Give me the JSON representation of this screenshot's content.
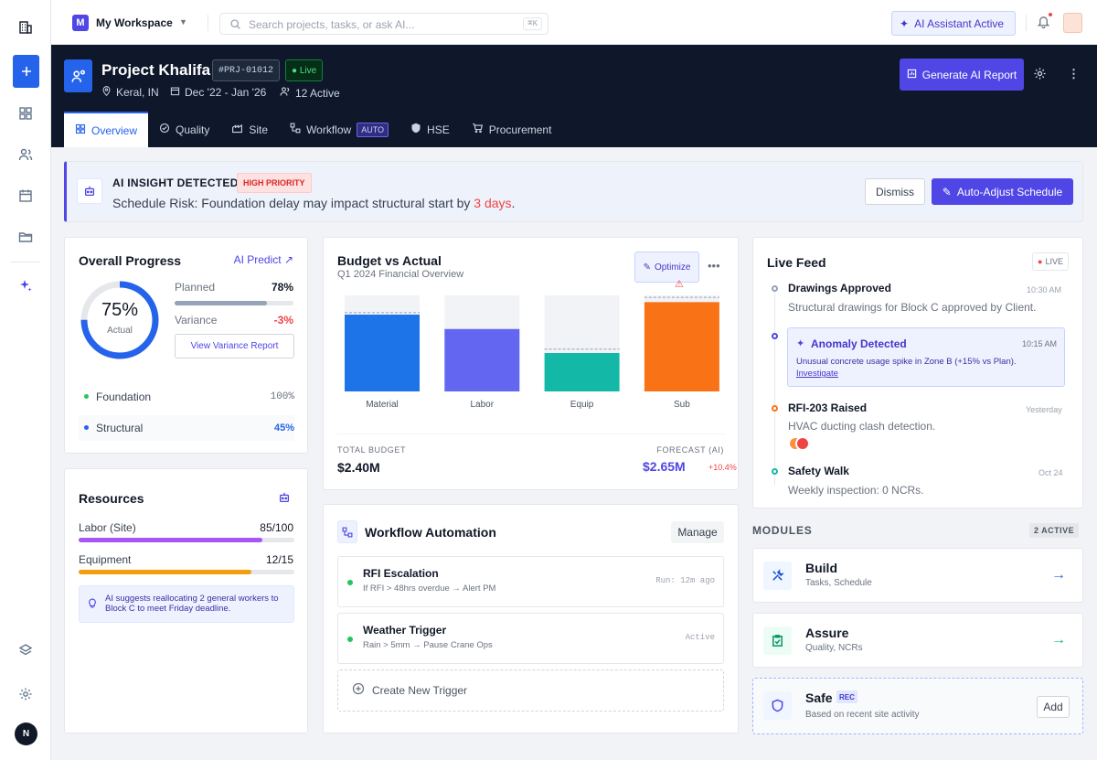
{
  "workspace": {
    "badge": "M",
    "name": "My Workspace"
  },
  "search": {
    "placeholder": "Search projects, tasks, or ask AI...",
    "shortcut": "⌘K"
  },
  "topbar": {
    "ai_status": "AI Assistant Active"
  },
  "project": {
    "title": "Project Khalifa",
    "code": "#PRJ-01012",
    "status": "Live",
    "location": "Keral, IN",
    "dates": "Dec '22 - Jan '26",
    "active": "12 Active",
    "report_button": "Generate AI Report"
  },
  "tabs": [
    {
      "label": "Overview"
    },
    {
      "label": "Quality"
    },
    {
      "label": "Site"
    },
    {
      "label": "Workflow",
      "badge": "AUTO"
    },
    {
      "label": "HSE"
    },
    {
      "label": "Procurement"
    }
  ],
  "insight": {
    "title": "AI INSIGHT DETECTED",
    "priority": "HIGH PRIORITY",
    "text_prefix": "Schedule Risk: Foundation delay may impact structural start by ",
    "highlight": "3 days",
    "text_suffix": ".",
    "dismiss": "Dismiss",
    "action": "Auto-Adjust Schedule"
  },
  "progress": {
    "title": "Overall Progress",
    "predict": "AI Predict",
    "percent_label": "75%",
    "percent": 75,
    "caption": "Actual",
    "planned_label": "Planned",
    "planned_value": "78%",
    "planned": 0.78,
    "variance_label": "Variance",
    "variance_value": "-3%",
    "report_button": "View Variance Report",
    "phases": [
      {
        "name": "Foundation",
        "value": "100%",
        "color": "#22c55e"
      },
      {
        "name": "Structural",
        "value": "45%",
        "color": "#2563eb"
      }
    ]
  },
  "budget": {
    "title": "Budget vs Actual",
    "subtitle": "Q1 2024 Financial Overview",
    "optimize": "Optimize",
    "total_label": "TOTAL BUDGET",
    "total_value": "$2.40M",
    "forecast_label": "FORECAST (AI)",
    "forecast_value": "$2.65M",
    "forecast_delta": "+10.4%"
  },
  "chart_data": {
    "type": "bar",
    "categories": [
      "Material",
      "Labor",
      "Equip",
      "Sub"
    ],
    "series": [
      {
        "values": [
          0.8,
          0.65,
          0.4,
          0.93
        ],
        "colors": [
          "#1d74e8",
          "#6366f1",
          "#14b8a6",
          "#f97316"
        ]
      }
    ],
    "budget_markers": [
      0.82,
      1.0,
      0.44,
      0.98
    ],
    "ylim": [
      0,
      1
    ],
    "grid": false
  },
  "resources": {
    "title": "Resources",
    "items": [
      {
        "label": "Labor (Site)",
        "value": "85/100",
        "fraction": 0.85,
        "color": "#a855f7"
      },
      {
        "label": "Equipment",
        "value": "12/15",
        "fraction": 0.8,
        "color": "#f59e0b"
      }
    ],
    "suggestion": "AI suggests reallocating 2 general workers to Block C to meet Friday deadline."
  },
  "workflow": {
    "title": "Workflow Automation",
    "manage": "Manage",
    "items": [
      {
        "name": "RFI Escalation",
        "rule": "If RFI > 48hrs overdue → Alert PM",
        "status": "Run: 12m ago"
      },
      {
        "name": "Weather Trigger",
        "rule": "Rain > 5mm → Pause Crane Ops",
        "status": "Active"
      }
    ],
    "create": "Create New Trigger"
  },
  "feed": {
    "title": "Live Feed",
    "live": "LIVE",
    "items": [
      {
        "title": "Drawings Approved",
        "time": "10:30 AM",
        "text": "Structural drawings for Block C approved by Client."
      },
      {
        "title": "Anomaly Detected",
        "time": "10:15 AM",
        "text": "Unusual concrete usage spike in Zone B (+15% vs Plan).",
        "link": "Investigate"
      },
      {
        "title": "RFI-203 Raised",
        "time": "Yesterday",
        "text": "HVAC ducting clash detection."
      },
      {
        "title": "Safety Walk",
        "time": "Oct 24",
        "text": "Weekly inspection: 0 NCRs."
      }
    ]
  },
  "modules": {
    "title": "MODULES",
    "count": "2 ACTIVE",
    "items": [
      {
        "name": "Build",
        "desc": "Tasks, Schedule"
      },
      {
        "name": "Assure",
        "desc": "Quality, NCRs"
      },
      {
        "name": "Safe",
        "desc": "Based on recent site activity",
        "badge": "REC",
        "action": "Add"
      }
    ]
  },
  "user": {
    "initial": "N"
  }
}
